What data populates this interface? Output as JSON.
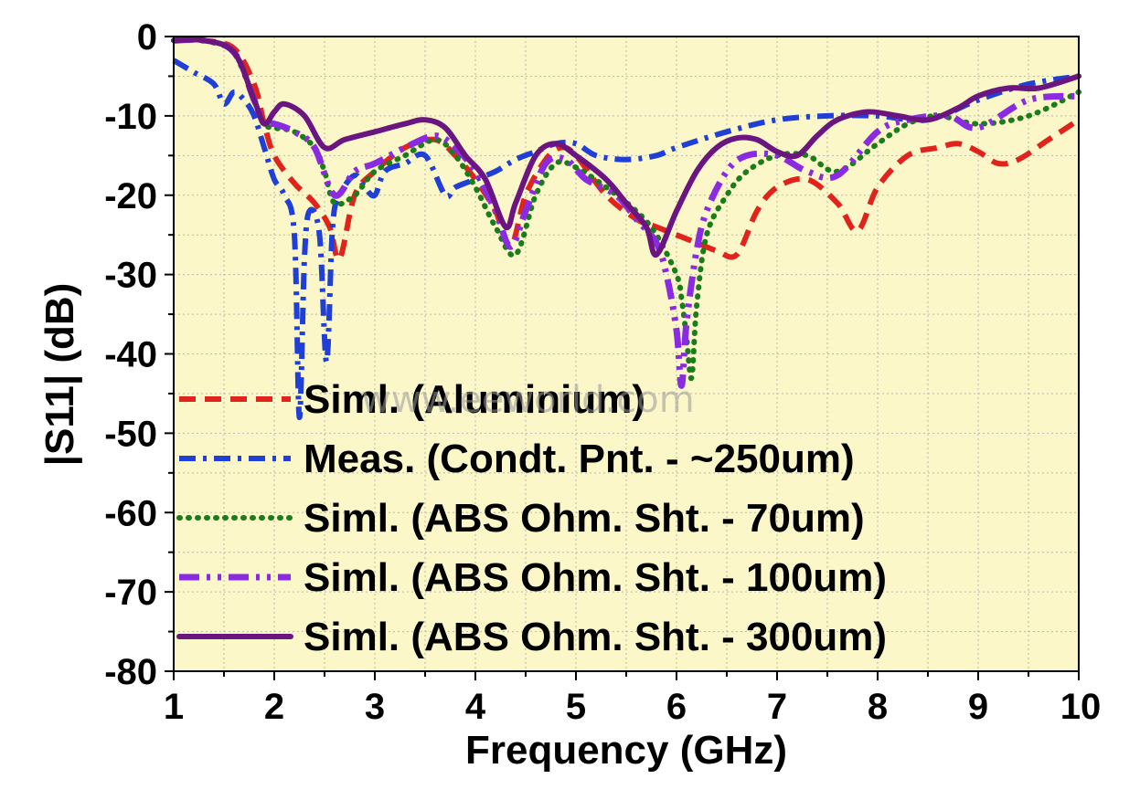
{
  "chart_data": {
    "type": "line",
    "xlabel": "Frequency (GHz)",
    "ylabel": "|S11| (dB)",
    "xlim": [
      1,
      10
    ],
    "ylim": [
      -80,
      0
    ],
    "xticks": [
      "1",
      "2",
      "3",
      "4",
      "5",
      "6",
      "7",
      "8",
      "9",
      "10"
    ],
    "yticks": [
      "0",
      "-10",
      "-20",
      "-30",
      "-40",
      "-50",
      "-60",
      "-70",
      "-80"
    ],
    "grid": true,
    "plot_background": "#fbf7c9",
    "legend_position": "lower-left",
    "watermark": "www.eeworld.com",
    "series": [
      {
        "name": "Siml. (Aluminium)",
        "color": "#e0241b",
        "dash": "dash",
        "x": [
          1.0,
          1.3,
          1.6,
          1.8,
          1.9,
          2.0,
          2.2,
          2.4,
          2.55,
          2.65,
          2.8,
          3.0,
          3.3,
          3.6,
          3.8,
          4.0,
          4.2,
          4.35,
          4.5,
          4.7,
          4.85,
          5.0,
          5.3,
          5.6,
          5.8,
          6.0,
          6.2,
          6.4,
          6.6,
          6.8,
          7.0,
          7.3,
          7.6,
          7.8,
          8.0,
          8.3,
          8.6,
          8.8,
          9.0,
          9.2,
          9.4,
          9.7,
          10.0
        ],
        "y": [
          -0.5,
          -0.5,
          -1.5,
          -6.0,
          -11.0,
          -15.0,
          -18.5,
          -21.0,
          -24.0,
          -28.0,
          -20.0,
          -17.0,
          -14.0,
          -13.0,
          -15.0,
          -18.0,
          -22.0,
          -26.5,
          -20.0,
          -15.5,
          -14.0,
          -15.0,
          -20.0,
          -23.0,
          -24.0,
          -25.0,
          -26.0,
          -27.0,
          -27.5,
          -22.0,
          -19.0,
          -18.0,
          -21.0,
          -24.5,
          -19.0,
          -15.0,
          -14.0,
          -13.5,
          -14.5,
          -16.0,
          -15.5,
          -13.0,
          -10.5
        ]
      },
      {
        "name": "Meas. (Condt. Pnt. - ~250um)",
        "color": "#1f3fd6",
        "dash": "dash-dot",
        "x": [
          1.0,
          1.2,
          1.4,
          1.5,
          1.6,
          1.7,
          1.8,
          1.9,
          2.0,
          2.1,
          2.2,
          2.25,
          2.3,
          2.35,
          2.45,
          2.52,
          2.58,
          2.65,
          2.8,
          2.9,
          3.0,
          3.1,
          3.3,
          3.5,
          3.7,
          3.8,
          4.0,
          4.2,
          4.4,
          4.6,
          4.8,
          5.0,
          5.2,
          5.5,
          5.8,
          6.0,
          6.5,
          7.0,
          7.5,
          8.0,
          8.5,
          9.0,
          9.5,
          10.0
        ],
        "y": [
          -3.0,
          -4.5,
          -6.0,
          -8.5,
          -7.0,
          -8.0,
          -10.0,
          -14.0,
          -18.0,
          -20.0,
          -25.0,
          -48.0,
          -28.0,
          -22.0,
          -25.0,
          -41.0,
          -24.0,
          -20.0,
          -17.5,
          -19.0,
          -20.0,
          -17.0,
          -16.0,
          -15.0,
          -20.0,
          -19.0,
          -18.0,
          -17.0,
          -15.5,
          -14.5,
          -13.5,
          -13.5,
          -15.0,
          -15.5,
          -15.0,
          -14.0,
          -12.0,
          -10.5,
          -10.0,
          -10.0,
          -10.5,
          -8.0,
          -6.0,
          -5.0
        ]
      },
      {
        "name": "Siml. (ABS Ohm. Sht. - 70um)",
        "color": "#1a7d1a",
        "dash": "dot",
        "x": [
          1.0,
          1.3,
          1.6,
          1.8,
          1.9,
          2.0,
          2.2,
          2.4,
          2.5,
          2.6,
          2.8,
          3.0,
          3.3,
          3.6,
          3.8,
          4.0,
          4.2,
          4.4,
          4.6,
          4.8,
          5.0,
          5.3,
          5.6,
          5.8,
          6.0,
          6.05,
          6.1,
          6.15,
          6.2,
          6.3,
          6.5,
          6.7,
          7.0,
          7.3,
          7.6,
          8.0,
          8.3,
          8.6,
          9.0,
          9.5,
          10.0
        ],
        "y": [
          -0.5,
          -0.5,
          -2.0,
          -8.0,
          -11.0,
          -11.5,
          -12.0,
          -14.0,
          -17.0,
          -21.0,
          -20.0,
          -17.0,
          -15.0,
          -13.0,
          -15.0,
          -19.0,
          -24.0,
          -27.5,
          -20.0,
          -16.0,
          -16.5,
          -19.0,
          -22.0,
          -25.0,
          -30.0,
          -33.0,
          -38.0,
          -43.0,
          -34.0,
          -25.0,
          -20.0,
          -17.0,
          -15.0,
          -15.0,
          -17.0,
          -13.5,
          -11.0,
          -10.0,
          -11.0,
          -10.0,
          -7.0
        ]
      },
      {
        "name": "Siml. (ABS Ohm. Sht. - 100um)",
        "color": "#8a2be2",
        "dash": "dash-dot-dot",
        "x": [
          1.0,
          1.3,
          1.6,
          1.8,
          1.9,
          2.0,
          2.2,
          2.4,
          2.6,
          2.8,
          3.0,
          3.3,
          3.6,
          3.8,
          4.0,
          4.2,
          4.35,
          4.5,
          4.7,
          4.9,
          5.1,
          5.4,
          5.6,
          5.8,
          5.9,
          6.0,
          6.05,
          6.1,
          6.2,
          6.3,
          6.5,
          6.7,
          7.0,
          7.3,
          7.6,
          8.0,
          8.3,
          8.7,
          9.0,
          9.5,
          10.0
        ],
        "y": [
          -0.5,
          -0.5,
          -2.0,
          -8.0,
          -11.0,
          -11.0,
          -12.0,
          -14.0,
          -20.0,
          -17.0,
          -16.0,
          -14.0,
          -12.5,
          -14.0,
          -17.0,
          -22.0,
          -26.5,
          -22.0,
          -16.0,
          -15.5,
          -18.0,
          -20.0,
          -23.0,
          -26.0,
          -30.0,
          -37.0,
          -44.0,
          -36.0,
          -27.0,
          -22.0,
          -17.0,
          -15.0,
          -15.0,
          -17.0,
          -17.5,
          -12.0,
          -10.5,
          -10.0,
          -11.5,
          -8.0,
          -7.5
        ]
      },
      {
        "name": "Siml. (ABS Ohm. Sht. - 300um)",
        "color": "#6b1580",
        "dash": "solid",
        "x": [
          1.0,
          1.3,
          1.6,
          1.8,
          1.9,
          2.0,
          2.1,
          2.3,
          2.5,
          2.7,
          3.0,
          3.3,
          3.5,
          3.7,
          3.9,
          4.1,
          4.3,
          4.4,
          4.6,
          4.8,
          5.0,
          5.3,
          5.5,
          5.7,
          5.8,
          6.0,
          6.2,
          6.4,
          6.6,
          6.8,
          7.0,
          7.2,
          7.4,
          7.6,
          7.9,
          8.2,
          8.5,
          8.8,
          9.0,
          9.3,
          9.6,
          10.0
        ],
        "y": [
          -0.5,
          -0.5,
          -2.0,
          -8.0,
          -11.0,
          -9.5,
          -8.5,
          -10.0,
          -14.0,
          -13.0,
          -12.0,
          -11.0,
          -10.5,
          -11.5,
          -15.0,
          -18.0,
          -24.0,
          -21.0,
          -15.0,
          -13.5,
          -15.0,
          -18.0,
          -21.0,
          -24.0,
          -27.5,
          -22.0,
          -17.0,
          -14.0,
          -12.8,
          -13.0,
          -14.5,
          -15.0,
          -12.5,
          -10.5,
          -9.5,
          -10.0,
          -10.5,
          -9.0,
          -7.5,
          -6.5,
          -6.5,
          -5.0
        ]
      }
    ]
  }
}
